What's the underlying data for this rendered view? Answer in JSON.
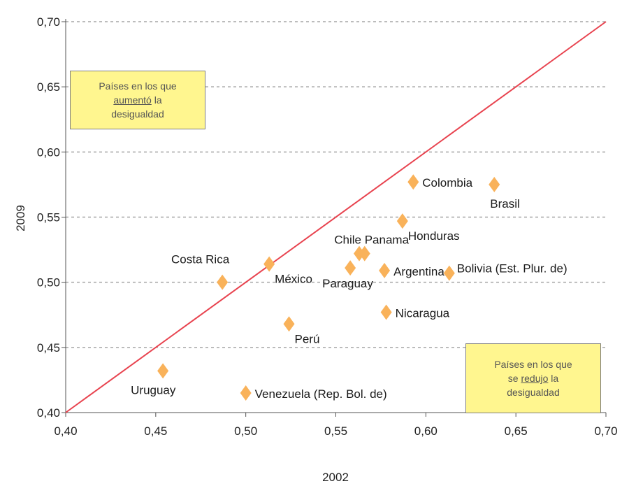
{
  "chart_data": {
    "type": "scatter",
    "xlabel": "2002",
    "ylabel": "2009",
    "xlim": [
      0.4,
      0.7
    ],
    "ylim": [
      0.4,
      0.7
    ],
    "x_ticks": [
      "0,40",
      "0,45",
      "0,50",
      "0,55",
      "0,60",
      "0,65",
      "0,70"
    ],
    "y_ticks": [
      "0,40",
      "0,45",
      "0,50",
      "0,55",
      "0,60",
      "0,65",
      "0,70"
    ],
    "grid": "horizontal-dashed",
    "reference_line": {
      "from": [
        0.4,
        0.4
      ],
      "to": [
        0.7,
        0.7
      ],
      "color": "#e8434f"
    },
    "marker_color": "#f9b25a",
    "points": [
      {
        "label": "Colombia",
        "x": 0.593,
        "y": 0.577,
        "label_pos": "right"
      },
      {
        "label": "Brasil",
        "x": 0.638,
        "y": 0.575,
        "label_pos": "below"
      },
      {
        "label": "Honduras",
        "x": 0.587,
        "y": 0.547,
        "label_pos": "below-right"
      },
      {
        "label": "Chile",
        "x": 0.563,
        "y": 0.522,
        "label_pos": "above-left"
      },
      {
        "label": "Panama",
        "x": 0.566,
        "y": 0.522,
        "label_pos": "above-right"
      },
      {
        "label": "Costa Rica",
        "x": 0.487,
        "y": 0.5,
        "label_pos": "above-left"
      },
      {
        "label": "México",
        "x": 0.513,
        "y": 0.514,
        "label_pos": "below-right"
      },
      {
        "label": "Paraguay",
        "x": 0.558,
        "y": 0.511,
        "label_pos": "below-left"
      },
      {
        "label": "Argentina",
        "x": 0.577,
        "y": 0.509,
        "label_pos": "right"
      },
      {
        "label": "Bolivia (Est. Plur. de)",
        "x": 0.613,
        "y": 0.507,
        "label_pos": "right-up"
      },
      {
        "label": "Nicaragua",
        "x": 0.578,
        "y": 0.477,
        "label_pos": "right"
      },
      {
        "label": "Perú",
        "x": 0.524,
        "y": 0.468,
        "label_pos": "below-right"
      },
      {
        "label": "Uruguay",
        "x": 0.454,
        "y": 0.432,
        "label_pos": "below-left"
      },
      {
        "label": "Venezuela (Rep. Bol. de)",
        "x": 0.5,
        "y": 0.415,
        "label_pos": "right"
      }
    ],
    "annotations": {
      "top_left": {
        "pre": "Países en los que",
        "underlined": "aumentó",
        "post": "la",
        "last": "desigualdad"
      },
      "bottom_right": {
        "pre": "Países en los que",
        "mid_pre": "se",
        "underlined": "redujo",
        "post": "la",
        "last": "desigualdad"
      }
    }
  }
}
